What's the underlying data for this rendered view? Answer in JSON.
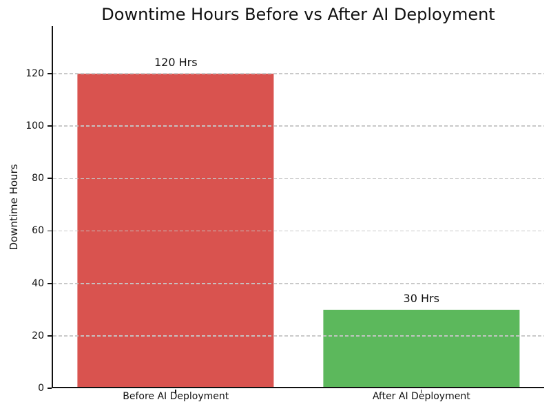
{
  "chart_data": {
    "type": "bar",
    "title": "Downtime Hours Before vs After AI Deployment",
    "xlabel": "",
    "ylabel": "Downtime Hours",
    "categories": [
      "Before AI Deployment",
      "After AI Deployment"
    ],
    "values": [
      120,
      30
    ],
    "bar_labels": [
      "120 Hrs",
      "30 Hrs"
    ],
    "bar_colors": [
      "#d9534f",
      "#5cb85c"
    ],
    "yticks": [
      0,
      20,
      40,
      60,
      80,
      100,
      120
    ],
    "ylim": [
      0,
      138
    ],
    "bar_width_fraction": 0.8,
    "grid": {
      "axis": "y",
      "style": "dashed",
      "color": "#c6c6c6",
      "on": true
    },
    "legend": "none",
    "axis_color": "#111111",
    "background_color": "#ffffff"
  }
}
